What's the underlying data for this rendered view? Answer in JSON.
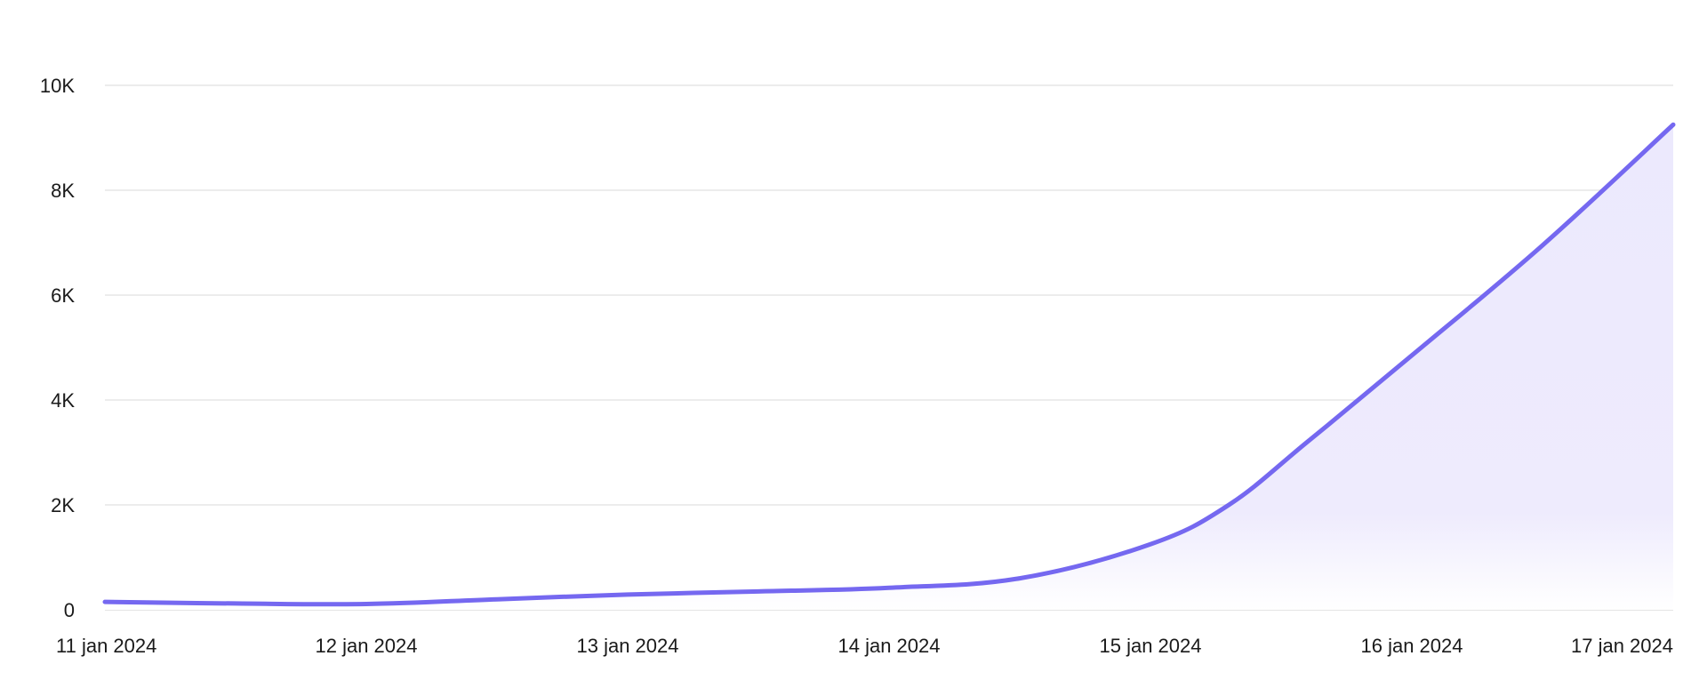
{
  "chart_data": {
    "type": "area",
    "title": "",
    "xlabel": "",
    "ylabel": "",
    "x_tick_labels": [
      "11 jan 2024",
      "12 jan 2024",
      "13 jan 2024",
      "14 jan 2024",
      "15 jan 2024",
      "16 jan 2024",
      "17 jan 2024"
    ],
    "y_tick_labels": [
      "0",
      "2K",
      "4K",
      "6K",
      "8K",
      "10K"
    ],
    "y_ticks": [
      0,
      2000,
      4000,
      6000,
      8000,
      10000
    ],
    "ylim": [
      0,
      10000
    ],
    "xlim": [
      0,
      6
    ],
    "grid": true,
    "legend": "none",
    "series": [
      {
        "x": [
          0,
          0.5,
          1,
          1.5,
          2,
          2.5,
          3,
          3.5,
          4,
          4.3,
          4.6,
          5,
          5.5,
          6
        ],
        "values": [
          150,
          120,
          110,
          200,
          290,
          350,
          420,
          600,
          1250,
          2000,
          3200,
          4850,
          6950,
          9250
        ],
        "color": "#7568f0",
        "fill_color": "#ece9fd"
      }
    ]
  }
}
